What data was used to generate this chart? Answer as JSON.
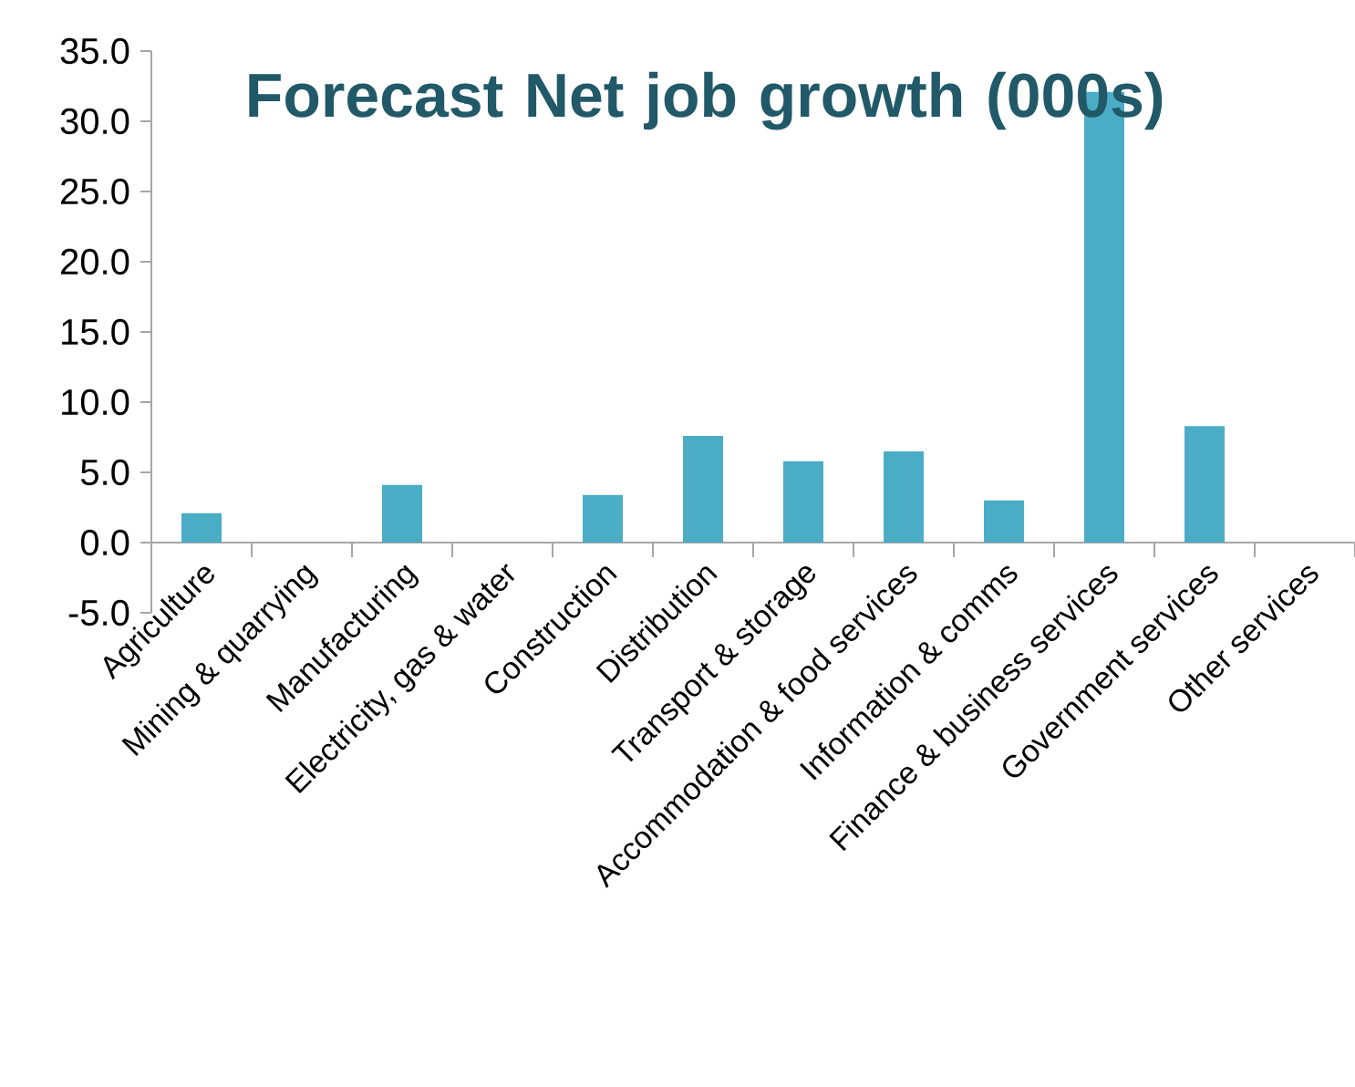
{
  "chart_data": {
    "type": "bar",
    "title": "Forecast Net job growth (000s)",
    "categories": [
      "Agriculture",
      "Mining & quarrying",
      "Manufacturing",
      "Electricity, gas & water",
      "Construction",
      "Distribution",
      "Transport & storage",
      "Accommodation & food services",
      "Information & comms",
      "Finance & business services",
      "Government services",
      "Other services"
    ],
    "values": [
      2.1,
      0,
      4.1,
      0,
      3.4,
      7.6,
      5.8,
      6.5,
      3.0,
      32.1,
      8.3,
      0
    ],
    "color": "#4bacc6",
    "ylim": [
      -5,
      35
    ],
    "yticks": [
      {
        "value": -5,
        "label": "-5.0"
      },
      {
        "value": 0,
        "label": "0.0"
      },
      {
        "value": 5,
        "label": "5.0"
      },
      {
        "value": 10,
        "label": "10.0"
      },
      {
        "value": 15,
        "label": "15.0"
      },
      {
        "value": 20,
        "label": "20.0"
      },
      {
        "value": 25,
        "label": "25.0"
      },
      {
        "value": 30,
        "label": "30.0"
      },
      {
        "value": 35,
        "label": "35.0"
      }
    ]
  }
}
